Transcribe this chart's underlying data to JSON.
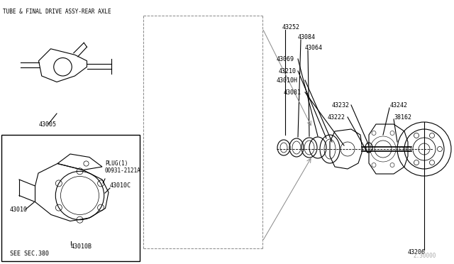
{
  "title": "TUBE & FINAL DRIVE ASSY-REAR AXLE",
  "bg_color": "#ffffff",
  "line_color": "#000000",
  "text_color": "#000000",
  "fig_width": 6.4,
  "fig_height": 3.72,
  "dpi": 100,
  "watermark": "2.30000",
  "parts": {
    "main_exploded": {
      "labels": [
        "43252",
        "43084",
        "43064",
        "43069",
        "43210",
        "43010H",
        "43081",
        "43232",
        "43222",
        "43242",
        "38162",
        "43206"
      ]
    },
    "inset_top": {
      "label": "43005",
      "title": "TUBE & FINAL DRIVE ASSY-REAR AXLE"
    },
    "inset_bottom": {
      "labels": [
        "43010",
        "43010B",
        "43010C",
        "00931-2121A\nPLUG(1)",
        "SEE SEC.380"
      ]
    }
  }
}
